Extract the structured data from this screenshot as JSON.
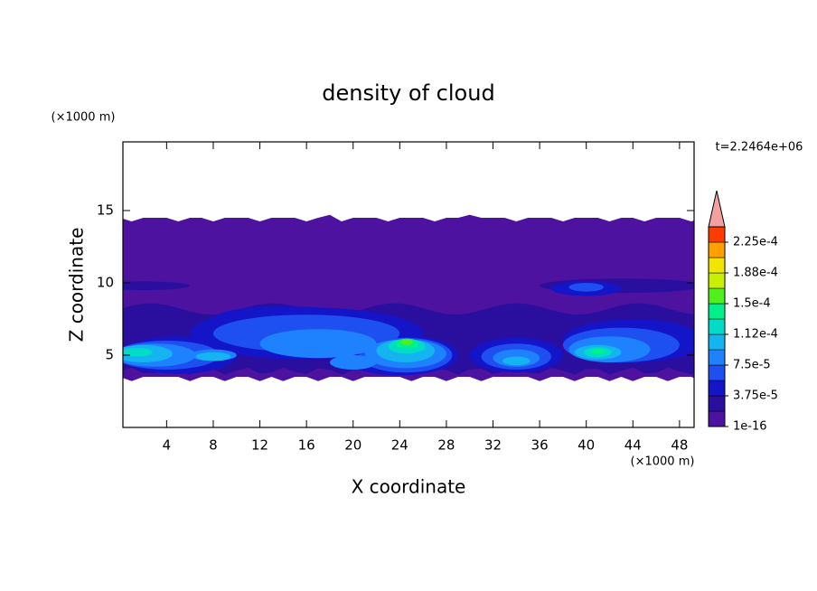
{
  "chart_data": {
    "type": "contour",
    "title": "density of cloud",
    "x_label": "X coordinate",
    "y_label": "Z coordinate",
    "x_unit": "(×1000 m)",
    "y_unit": "(×1000 m)",
    "time_label": "t=2.2464e+06",
    "xlim": [
      0.25,
      49.25
    ],
    "ylim": [
      0,
      19.75
    ],
    "xticks": [
      4,
      8,
      12,
      16,
      20,
      24,
      28,
      32,
      36,
      40,
      44,
      48
    ],
    "yticks": [
      5,
      10,
      15
    ],
    "colorbar": {
      "levels": [
        1e-16,
        1.875e-05,
        3.75e-05,
        5.625e-05,
        7.5e-05,
        9.375e-05,
        0.0001125,
        0.00013125,
        0.00015,
        0.00016875,
        0.0001875,
        0.00020625,
        0.000225
      ],
      "colors": [
        "#4e12a0",
        "#2a0f9e",
        "#1414c8",
        "#1e4ff0",
        "#1e82ff",
        "#14b4f0",
        "#00dcc8",
        "#00f08c",
        "#50f01e",
        "#c8f000",
        "#f0e600",
        "#ffa000",
        "#ff3c00"
      ],
      "ticks": [
        {
          "value": 1e-16,
          "label": "1e-16"
        },
        {
          "value": 3.75e-05,
          "label": "3.75e-5"
        },
        {
          "value": 7.5e-05,
          "label": "7.5e-5"
        },
        {
          "value": 0.0001125,
          "label": "1.12e-4"
        },
        {
          "value": 0.00015,
          "label": "1.5e-4"
        },
        {
          "value": 0.0001875,
          "label": "1.88e-4"
        },
        {
          "value": 0.000225,
          "label": "2.25e-4"
        }
      ],
      "extend_color": "#f4a0a0"
    }
  }
}
